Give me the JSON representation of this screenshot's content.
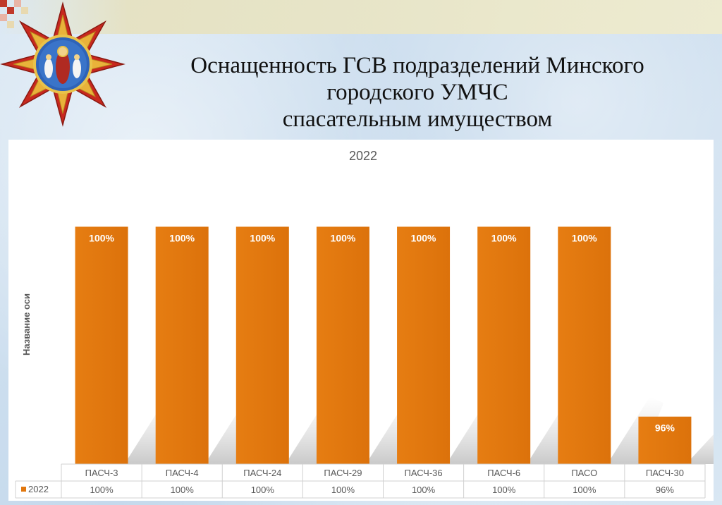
{
  "slide": {
    "title_lines": [
      "Оснащенность ГСВ подразделений Минского",
      "городского УМЧС",
      "спасательным имуществом"
    ]
  },
  "colors": {
    "bar": "#e1770e",
    "bar_dark": "#c9650a",
    "label": "#ffffff",
    "grid_line": "#d0d0d0",
    "text": "#595959"
  },
  "chart_data": {
    "type": "bar",
    "title": "2022",
    "ylabel": "Название оси",
    "categories": [
      "ПАСЧ-3",
      "ПАСЧ-4",
      "ПАСЧ-24",
      "ПАСЧ-29",
      "ПАСЧ-36",
      "ПАСЧ-6",
      "ПАСО",
      "ПАСЧ-30"
    ],
    "series": [
      {
        "name": "2022",
        "values": [
          100,
          100,
          100,
          100,
          100,
          100,
          100,
          96
        ]
      }
    ],
    "data_labels": [
      "100%",
      "100%",
      "100%",
      "100%",
      "100%",
      "100%",
      "100%",
      "96%"
    ],
    "table_values": [
      "100%",
      "100%",
      "100%",
      "100%",
      "100%",
      "100%",
      "100%",
      "96%"
    ],
    "ylim": [
      95,
      100.2
    ],
    "grid": false,
    "legend": "data-table"
  }
}
